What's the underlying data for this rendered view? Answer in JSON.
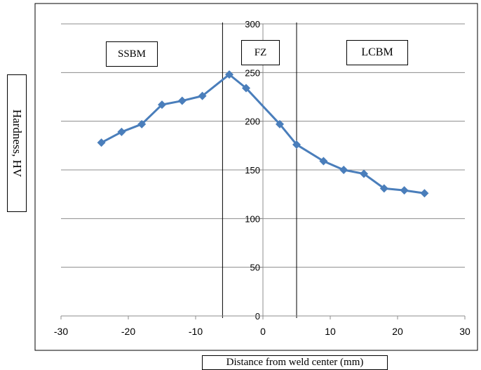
{
  "chart_data": {
    "type": "line",
    "ylabel": "Hardness, HV",
    "xlabel": "Distance from weld center (mm)",
    "xlim": [
      -30,
      30
    ],
    "ylim": [
      0,
      300
    ],
    "xticks": [
      "-30",
      "-20",
      "-10",
      "0",
      "10",
      "20",
      "30"
    ],
    "yticks": [
      "0",
      "50",
      "100",
      "150",
      "200",
      "250",
      "300"
    ],
    "grid": "horizontal",
    "series": [
      {
        "color": "#4a7ebb",
        "marker": "diamond",
        "x": [
          -24,
          -21,
          -18,
          -15,
          -12,
          -9,
          -5,
          -2.5,
          2.5,
          5,
          9,
          12,
          15,
          18,
          21,
          24
        ],
        "y": [
          178,
          189,
          197,
          217,
          221,
          226,
          248,
          234,
          197,
          176,
          159,
          150,
          146,
          131,
          129,
          126
        ]
      }
    ],
    "zones": [
      {
        "label": "SSBM"
      },
      {
        "label": "FZ",
        "x_start": -6,
        "x_end": 5
      },
      {
        "label": "LCBM"
      }
    ]
  }
}
